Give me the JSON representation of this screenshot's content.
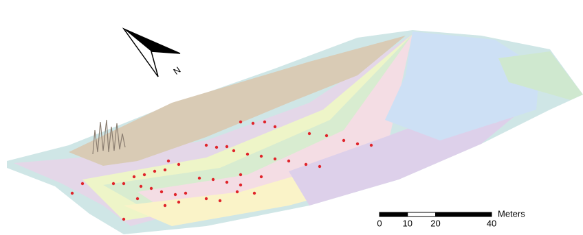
{
  "north_arrow": {
    "label": "N"
  },
  "scale_bar": {
    "unit": "Meters",
    "ticks": [
      0,
      10,
      20,
      40
    ]
  }
}
